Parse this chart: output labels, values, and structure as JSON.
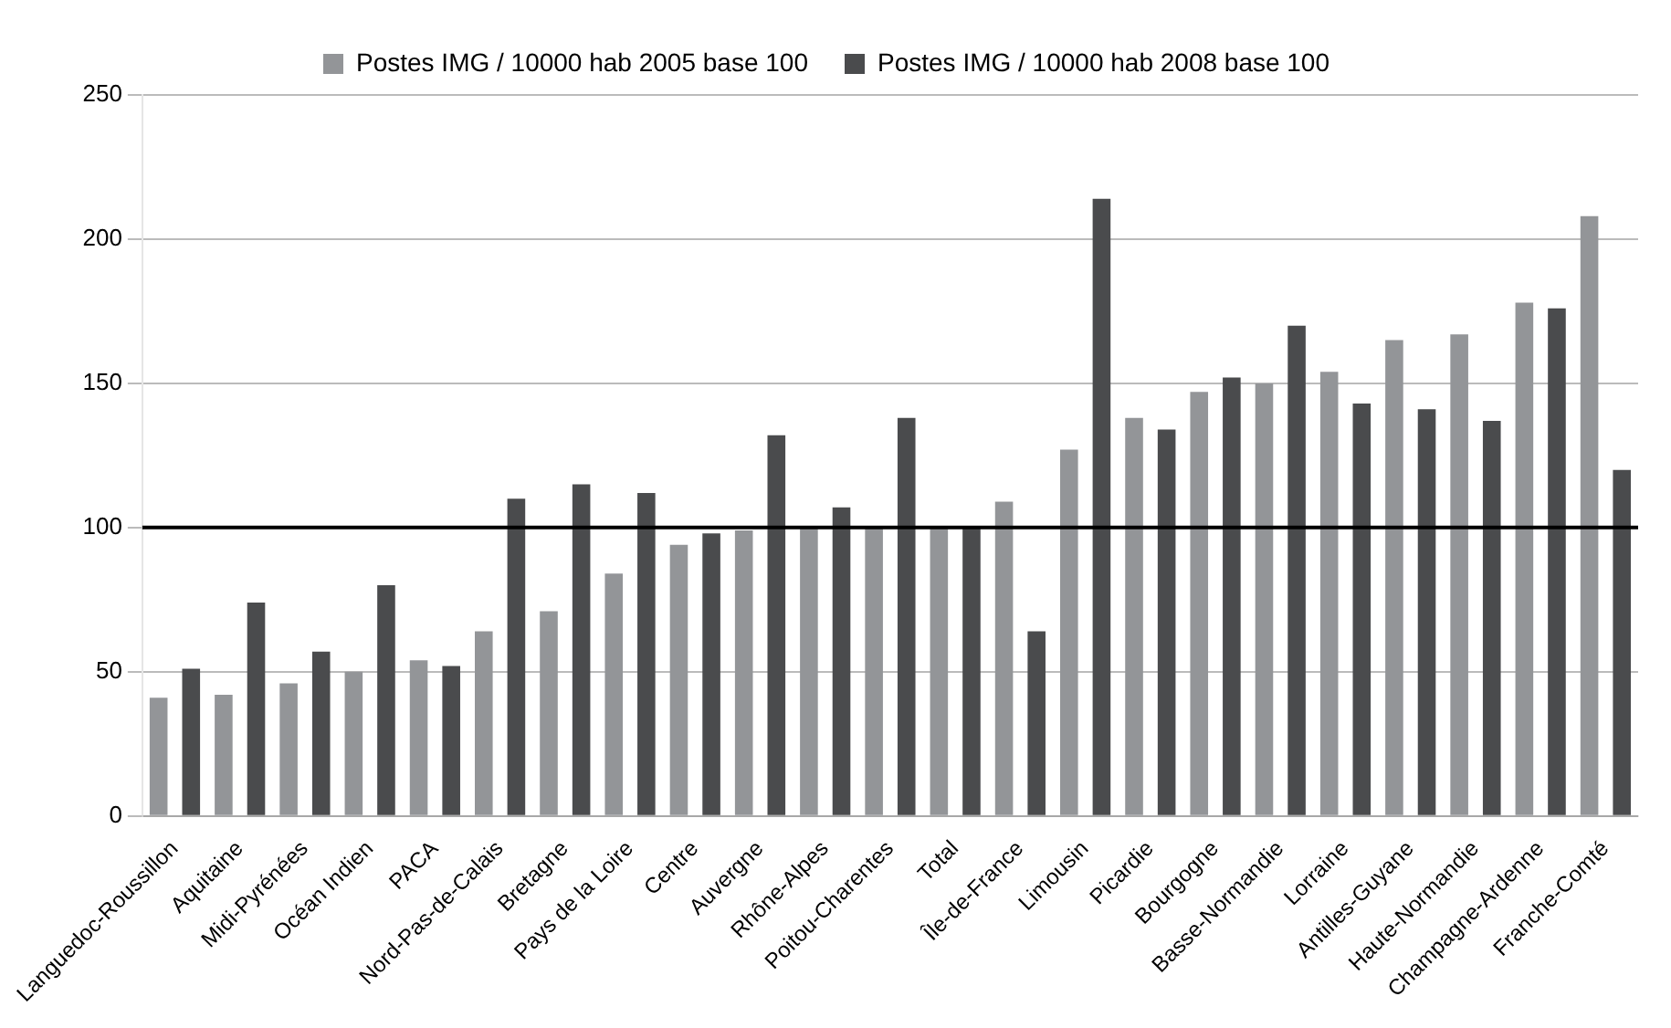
{
  "chart_data": {
    "type": "bar",
    "categories": [
      "Languedoc-Roussillon",
      "Aquitaine",
      "Midi-Pyrénées",
      "Océan Indien",
      "PACA",
      "Nord-Pas-de-Calais",
      "Bretagne",
      "Pays de la Loire",
      "Centre",
      "Auvergne",
      "Rhône-Alpes",
      "Poitou-Charentes",
      "Total",
      "Île-de-France",
      "Limousin",
      "Picardie",
      "Bourgogne",
      "Basse-Normandie",
      "Lorraine",
      "Antilles-Guyane",
      "Haute-Normandie",
      "Champagne-Ardenne",
      "Franche-Comté"
    ],
    "series": [
      {
        "name": "Postes IMG / 10000 hab 2005 base 100",
        "color": "#939598",
        "values": [
          41,
          42,
          46,
          50,
          54,
          64,
          71,
          84,
          94,
          99,
          100,
          100,
          100,
          109,
          127,
          138,
          147,
          150,
          154,
          165,
          167,
          178,
          208
        ]
      },
      {
        "name": "Postes IMG / 10000 hab 2008 base 100",
        "color": "#4a4b4d",
        "values": [
          51,
          74,
          57,
          80,
          52,
          110,
          115,
          112,
          98,
          132,
          107,
          138,
          100,
          64,
          214,
          134,
          152,
          170,
          143,
          141,
          137,
          176,
          120
        ]
      }
    ],
    "ylim": [
      0,
      250
    ],
    "yticks": [
      0,
      50,
      100,
      150,
      200,
      250
    ],
    "grid": "y",
    "legend": "top",
    "ref_lines": [
      {
        "axis": "y",
        "value": 100,
        "color": "#000000"
      }
    ]
  }
}
